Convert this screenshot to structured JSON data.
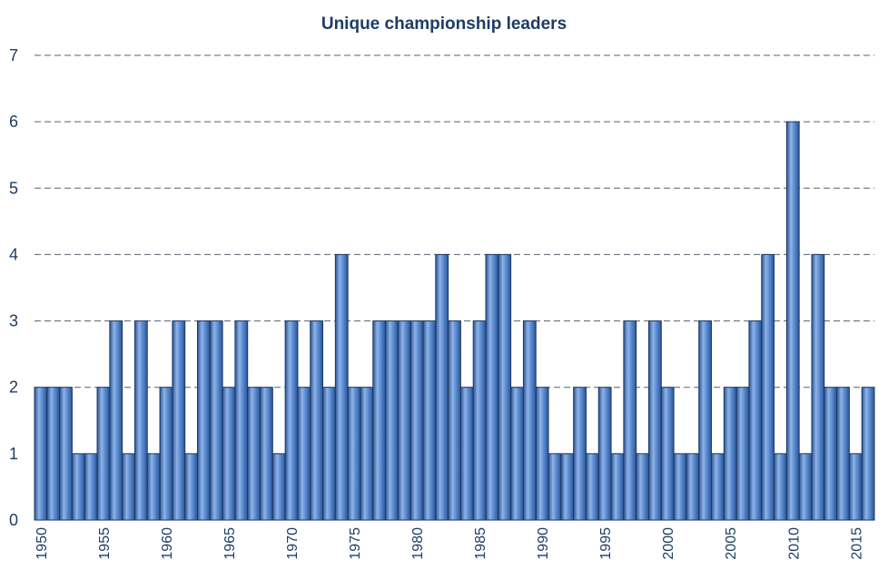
{
  "chart_data": {
    "type": "bar",
    "title": "Unique championship leaders",
    "xlabel": "",
    "ylabel": "",
    "ylim": [
      0,
      7
    ],
    "yticks": [
      0,
      1,
      2,
      3,
      4,
      5,
      6,
      7
    ],
    "grid": true,
    "legend": "none",
    "x_tick_labels": [
      "1950",
      "1955",
      "1960",
      "1965",
      "1970",
      "1975",
      "1980",
      "1985",
      "1990",
      "1995",
      "2000",
      "2005",
      "2010",
      "2015"
    ],
    "categories": [
      1950,
      1951,
      1952,
      1953,
      1954,
      1955,
      1956,
      1957,
      1958,
      1959,
      1960,
      1961,
      1962,
      1963,
      1964,
      1965,
      1966,
      1967,
      1968,
      1969,
      1970,
      1971,
      1972,
      1973,
      1974,
      1975,
      1976,
      1977,
      1978,
      1979,
      1980,
      1981,
      1982,
      1983,
      1984,
      1985,
      1986,
      1987,
      1988,
      1989,
      1990,
      1991,
      1992,
      1993,
      1994,
      1995,
      1996,
      1997,
      1998,
      1999,
      2000,
      2001,
      2002,
      2003,
      2004,
      2005,
      2006,
      2007,
      2008,
      2009,
      2010,
      2011,
      2012,
      2013,
      2014,
      2015,
      2016
    ],
    "values": [
      2,
      2,
      2,
      1,
      1,
      2,
      3,
      1,
      3,
      1,
      2,
      3,
      1,
      3,
      3,
      2,
      3,
      2,
      2,
      1,
      3,
      2,
      3,
      2,
      4,
      2,
      2,
      3,
      3,
      3,
      3,
      3,
      4,
      3,
      2,
      3,
      4,
      4,
      2,
      3,
      2,
      1,
      1,
      2,
      1,
      2,
      1,
      3,
      1,
      3,
      2,
      1,
      1,
      3,
      1,
      2,
      2,
      3,
      4,
      1,
      6,
      1,
      4,
      2,
      2,
      1,
      2
    ],
    "colors": {
      "bar_light": "#8fb3e6",
      "bar_mid": "#4f81c7",
      "bar_dark": "#2b5597",
      "text": "#1f3d63",
      "grid": "#55606e"
    }
  }
}
